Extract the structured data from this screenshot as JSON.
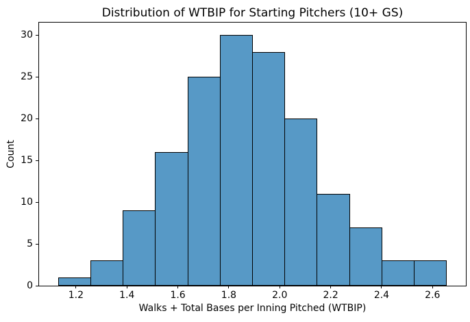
{
  "chart_data": {
    "type": "bar",
    "subtype": "histogram",
    "title": "Distribution of WTBIP for Starting Pitchers (10+ GS)",
    "xlabel": "Walks + Total Bases per Inning Pitched (WTBIP)",
    "ylabel": "Count",
    "bin_edges": [
      1.131,
      1.258,
      1.385,
      1.512,
      1.639,
      1.766,
      1.893,
      2.02,
      2.147,
      2.274,
      2.401,
      2.528,
      2.655
    ],
    "counts": [
      1,
      3,
      9,
      16,
      25,
      30,
      28,
      20,
      11,
      7,
      3,
      3
    ],
    "xticks": [
      1.2,
      1.4,
      1.6,
      1.8,
      2.0,
      2.2,
      2.4,
      2.6
    ],
    "yticks": [
      0,
      5,
      10,
      15,
      20,
      25,
      30
    ],
    "xlim": [
      1.055,
      2.731
    ],
    "ylim": [
      0,
      31.5
    ],
    "x_tick_decimals": 1,
    "bar_color": "#5799c6",
    "bar_edge_color": "#000000",
    "grid": false,
    "legend": "none"
  }
}
